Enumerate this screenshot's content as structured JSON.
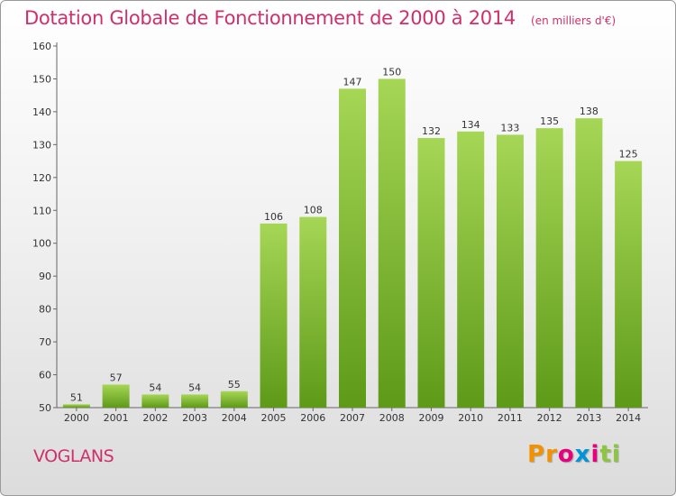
{
  "chart_data": {
    "type": "bar",
    "title": "Dotation Globale de Fonctionnement de 2000 à 2014",
    "subtitle": "(en milliers d'€)",
    "categories": [
      "2000",
      "2001",
      "2002",
      "2003",
      "2004",
      "2005",
      "2006",
      "2007",
      "2008",
      "2009",
      "2010",
      "2011",
      "2012",
      "2013",
      "2014"
    ],
    "values": [
      51,
      57,
      54,
      54,
      55,
      106,
      108,
      147,
      150,
      132,
      134,
      133,
      135,
      138,
      125
    ],
    "ylim": [
      50,
      160
    ],
    "yticks": [
      50,
      60,
      70,
      80,
      90,
      100,
      110,
      120,
      130,
      140,
      150,
      160
    ],
    "xlabel": "",
    "ylabel": "",
    "grid": false,
    "bar_color": "#8cc63f"
  },
  "commune": "VOGLANS",
  "logo": {
    "text": "Proxiti",
    "colors": [
      "#f39200",
      "#e6007e",
      "#0095d9",
      "#8cc63f"
    ]
  }
}
